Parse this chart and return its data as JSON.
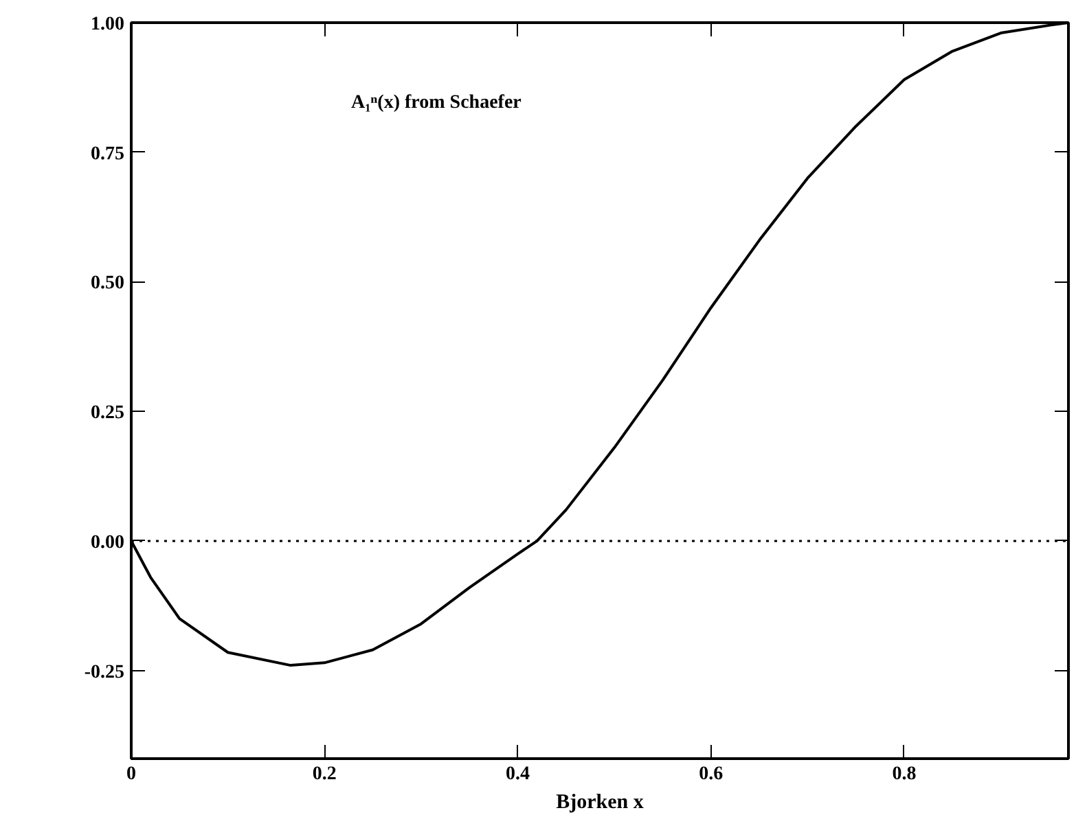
{
  "chart_data": {
    "type": "line",
    "xlabel": "Bjorken x",
    "x": [
      0,
      0.02,
      0.05,
      0.1,
      0.165,
      0.2,
      0.25,
      0.3,
      0.35,
      0.4,
      0.42,
      0.45,
      0.5,
      0.55,
      0.6,
      0.65,
      0.7,
      0.75,
      0.8,
      0.85,
      0.9,
      0.95,
      0.97
    ],
    "series": [
      {
        "color": "#000000",
        "values": [
          0,
          -0.07,
          -0.15,
          -0.215,
          -0.24,
          -0.235,
          -0.21,
          -0.16,
          -0.09,
          -0.025,
          0.0,
          0.06,
          0.18,
          0.31,
          0.45,
          0.58,
          0.7,
          0.8,
          0.89,
          0.945,
          0.98,
          0.995,
          1.0
        ]
      }
    ],
    "xlim": [
      0,
      0.97
    ],
    "ylim": [
      -0.42,
      1.0
    ],
    "xticks": [
      0,
      0.2,
      0.4,
      0.6,
      0.8
    ],
    "yticks": [
      {
        "value": -0.25,
        "label": "-0.25"
      },
      {
        "value": 0,
        "label": "0.00"
      },
      {
        "value": 0.25,
        "label": "0.25"
      },
      {
        "value": 0.5,
        "label": "0.50"
      },
      {
        "value": 0.75,
        "label": "0.75"
      },
      {
        "value": 1.0,
        "label": "1.00"
      }
    ],
    "ref_lines": [
      {
        "axis": "y",
        "value": 0,
        "label": null,
        "color": "#000000",
        "line_style": "dotted"
      }
    ],
    "annotations": [
      "A₁ⁿ(x) from Schaefer"
    ],
    "grid": false,
    "line_style": "solid"
  }
}
